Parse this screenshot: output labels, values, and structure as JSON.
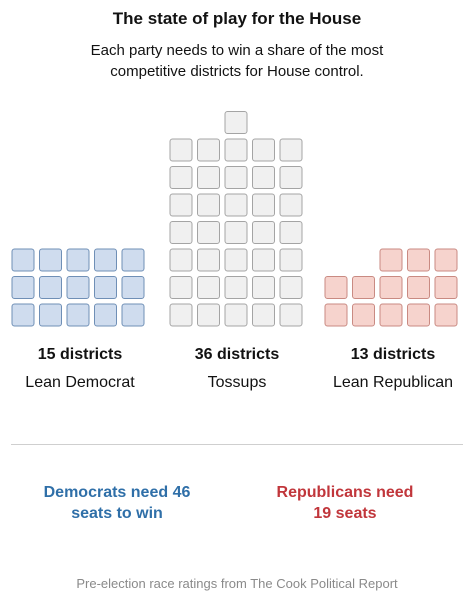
{
  "title": "The state of play for the House",
  "subtitle": "Each party needs to win a share of the most competitive districts for House control.",
  "chart_data": {
    "type": "waffle",
    "categories": [
      "Lean Democrat",
      "Tossups",
      "Lean Republican"
    ],
    "values": [
      15,
      36,
      13
    ],
    "colors": {
      "lean_democrat": {
        "fill": "#cfdcee",
        "stroke": "#6f8fb6"
      },
      "tossups": {
        "fill": "#f0f0f0",
        "stroke": "#a4a4a4"
      },
      "lean_republican": {
        "fill": "#f6d3cd",
        "stroke": "#c98a82"
      }
    }
  },
  "groups": [
    {
      "count_label": "15 districts",
      "label": "Lean Democrat"
    },
    {
      "count_label": "36 districts",
      "label": "Tossups"
    },
    {
      "count_label": "13 districts",
      "label": "Lean Republican"
    }
  ],
  "needs": {
    "democrats": "Democrats need 46 seats to win",
    "republicans": "Republicans need 19 seats",
    "dem_color": "#2f6fa8",
    "rep_color": "#c1363b"
  },
  "source": "Pre-election race ratings from The Cook Political Report"
}
